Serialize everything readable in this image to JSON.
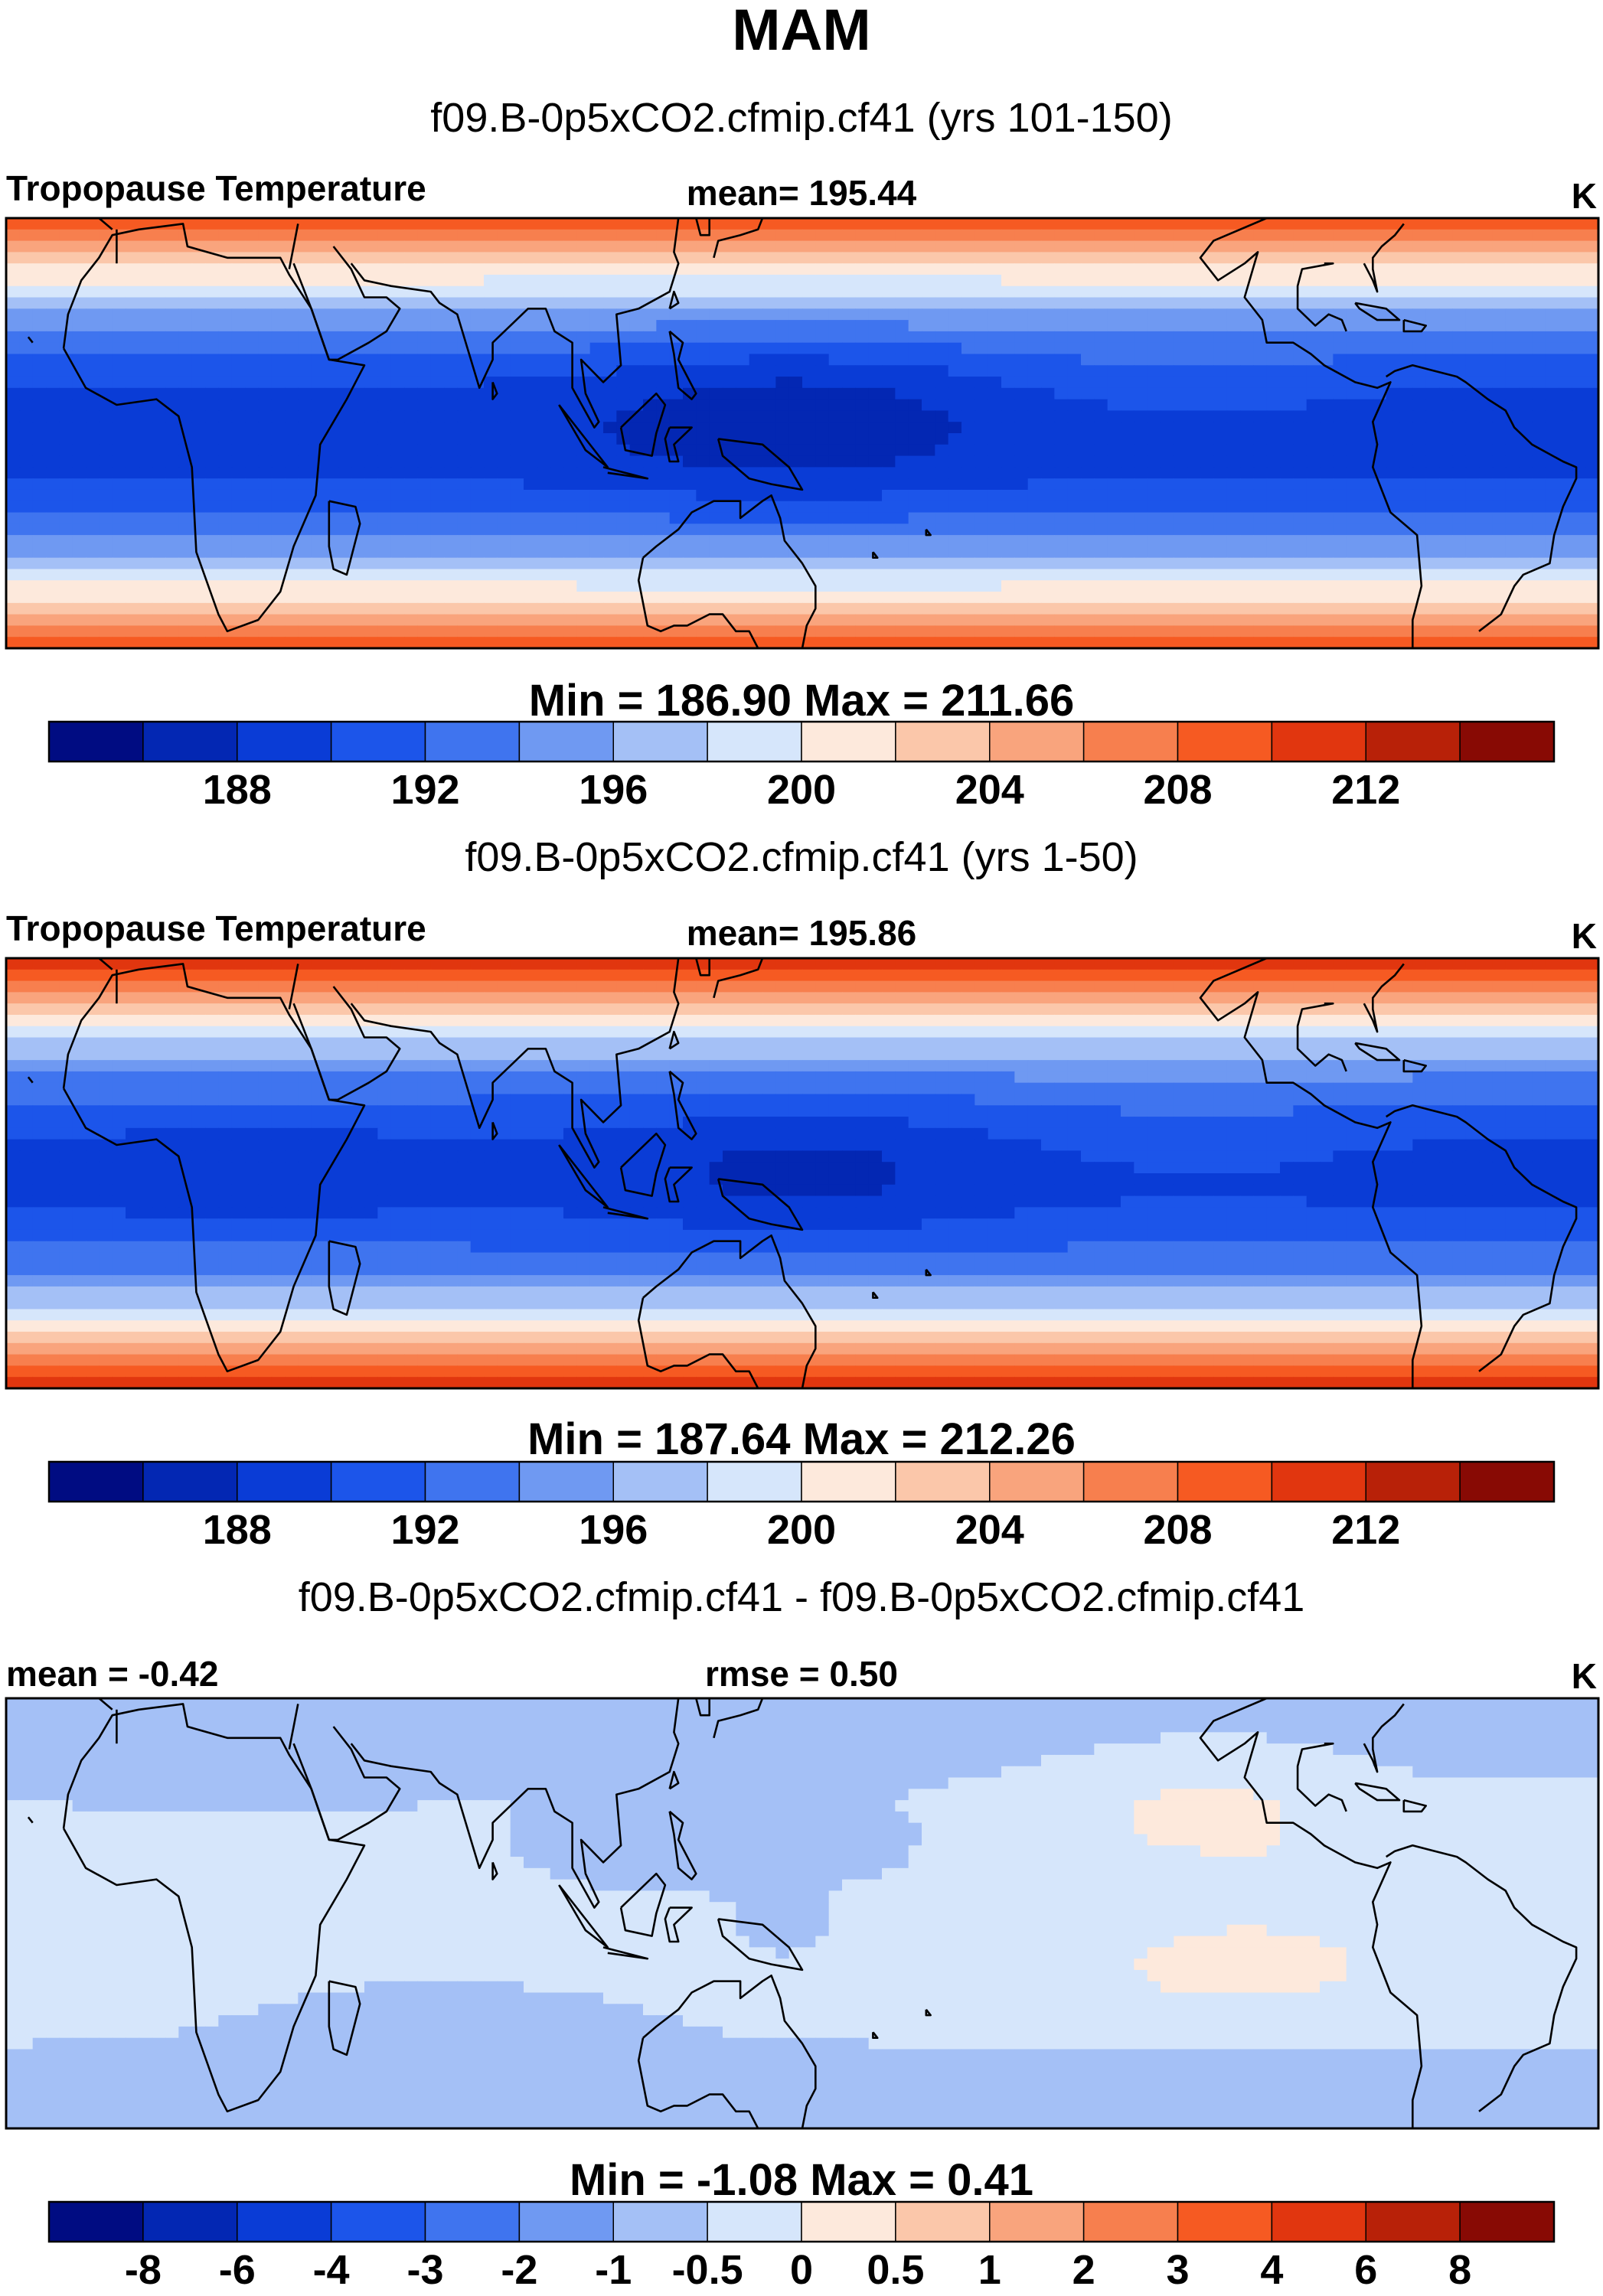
{
  "figure_title": "MAM",
  "panels": [
    {
      "case_title": "f09.B-0p5xCO2.cfmip.cf41 (yrs 101-150)",
      "left_label": "Tropopause Temperature",
      "center_label": "mean= 195.44",
      "right_label": "K",
      "minmax": "Min = 186.90 Max = 211.66"
    },
    {
      "case_title": "f09.B-0p5xCO2.cfmip.cf41 (yrs 1-50)",
      "left_label": "Tropopause Temperature",
      "center_label": "mean= 195.86",
      "right_label": "K",
      "minmax": "Min = 187.64 Max = 212.26"
    },
    {
      "case_title": "f09.B-0p5xCO2.cfmip.cf41 - f09.B-0p5xCO2.cfmip.cf41",
      "left_label": "mean =  -0.42",
      "center_label": "rmse =   0.50",
      "right_label": "K",
      "minmax": "Min =  -1.08 Max =   0.41"
    }
  ],
  "colors": {
    "palette": [
      "#000c82",
      "#0327b3",
      "#0a3cd6",
      "#1c55ea",
      "#3f74ef",
      "#6f99f2",
      "#a4c0f6",
      "#d6e6fb",
      "#fde9dc",
      "#fbc7aa",
      "#f9a47d",
      "#f77f4e",
      "#f65a22",
      "#e1360f",
      "#b82108",
      "#880a04"
    ],
    "coastline": "#000000",
    "background": "#ffffff"
  },
  "chart_data": [
    {
      "type": "heatmap",
      "title": "Tropopause Temperature",
      "subtitle": "f09.B-0p5xCO2.cfmip.cf41 (yrs 101-150)",
      "units": "K",
      "mean": 195.44,
      "min": 186.9,
      "max": 211.66,
      "colorbar_levels": [
        186,
        188,
        190,
        192,
        194,
        196,
        198,
        200,
        202,
        204,
        206,
        208,
        210,
        212,
        214
      ],
      "colorbar_ticks": [
        "188",
        "192",
        "196",
        "200",
        "204",
        "208",
        "212"
      ],
      "colorbar_tick_levels": [
        188,
        192,
        196,
        200,
        204,
        208,
        212
      ],
      "x_range": [
        -30,
        330
      ],
      "y_range": [
        -38,
        38
      ],
      "pattern": {
        "base": 188.9,
        "lat_amp": 22,
        "lat_scale": 38,
        "pool_amp": -2.6,
        "pool_lon": 147,
        "pool_lat": 3,
        "pool_wlon": 40,
        "pool_wlat": 14,
        "warm_amp": 1.1,
        "warm_lon": 240,
        "warm_lat": 8
      }
    },
    {
      "type": "heatmap",
      "title": "Tropopause Temperature",
      "subtitle": "f09.B-0p5xCO2.cfmip.cf41 (yrs 1-50)",
      "units": "K",
      "mean": 195.86,
      "min": 187.64,
      "max": 212.26,
      "colorbar_levels": [
        186,
        188,
        190,
        192,
        194,
        196,
        198,
        200,
        202,
        204,
        206,
        208,
        210,
        212,
        214
      ],
      "colorbar_ticks": [
        "188",
        "192",
        "196",
        "200",
        "204",
        "208",
        "212"
      ],
      "colorbar_tick_levels": [
        188,
        192,
        196,
        200,
        204,
        208,
        212
      ],
      "x_range": [
        -30,
        330
      ],
      "y_range": [
        -38,
        38
      ],
      "pattern": {
        "base": 189.4,
        "lat_amp": 22.3,
        "lat_scale": 38,
        "pool_amp": -2.1,
        "pool_lon": 150,
        "pool_lat": 0,
        "pool_wlon": 35,
        "pool_wlat": 12,
        "warm_amp": 1.0,
        "warm_lon": 240,
        "warm_lat": 8
      }
    },
    {
      "type": "heatmap",
      "title": "f09.B-0p5xCO2.cfmip.cf41 - f09.B-0p5xCO2.cfmip.cf41",
      "units": "K",
      "mean": -0.42,
      "rmse": 0.5,
      "min": -1.08,
      "max": 0.41,
      "colorbar_levels": [
        -8,
        -6,
        -4,
        -3,
        -2,
        -1,
        -0.5,
        0,
        0.5,
        1,
        2,
        3,
        4,
        6,
        8
      ],
      "colorbar_ticks": [
        "-8",
        "-6",
        "-4",
        "-3",
        "-2",
        "-1",
        "-0.5",
        "0",
        "0.5",
        "1",
        "2",
        "3",
        "4",
        "6",
        "8"
      ],
      "colorbar_tick_levels": [
        -8,
        -6,
        -4,
        -3,
        -2,
        -1,
        -0.5,
        0,
        0.5,
        1,
        2,
        3,
        4,
        6,
        8
      ],
      "x_range": [
        -30,
        330
      ],
      "y_range": [
        -38,
        38
      ],
      "pattern": {
        "base": -0.42,
        "diff": true
      }
    }
  ]
}
